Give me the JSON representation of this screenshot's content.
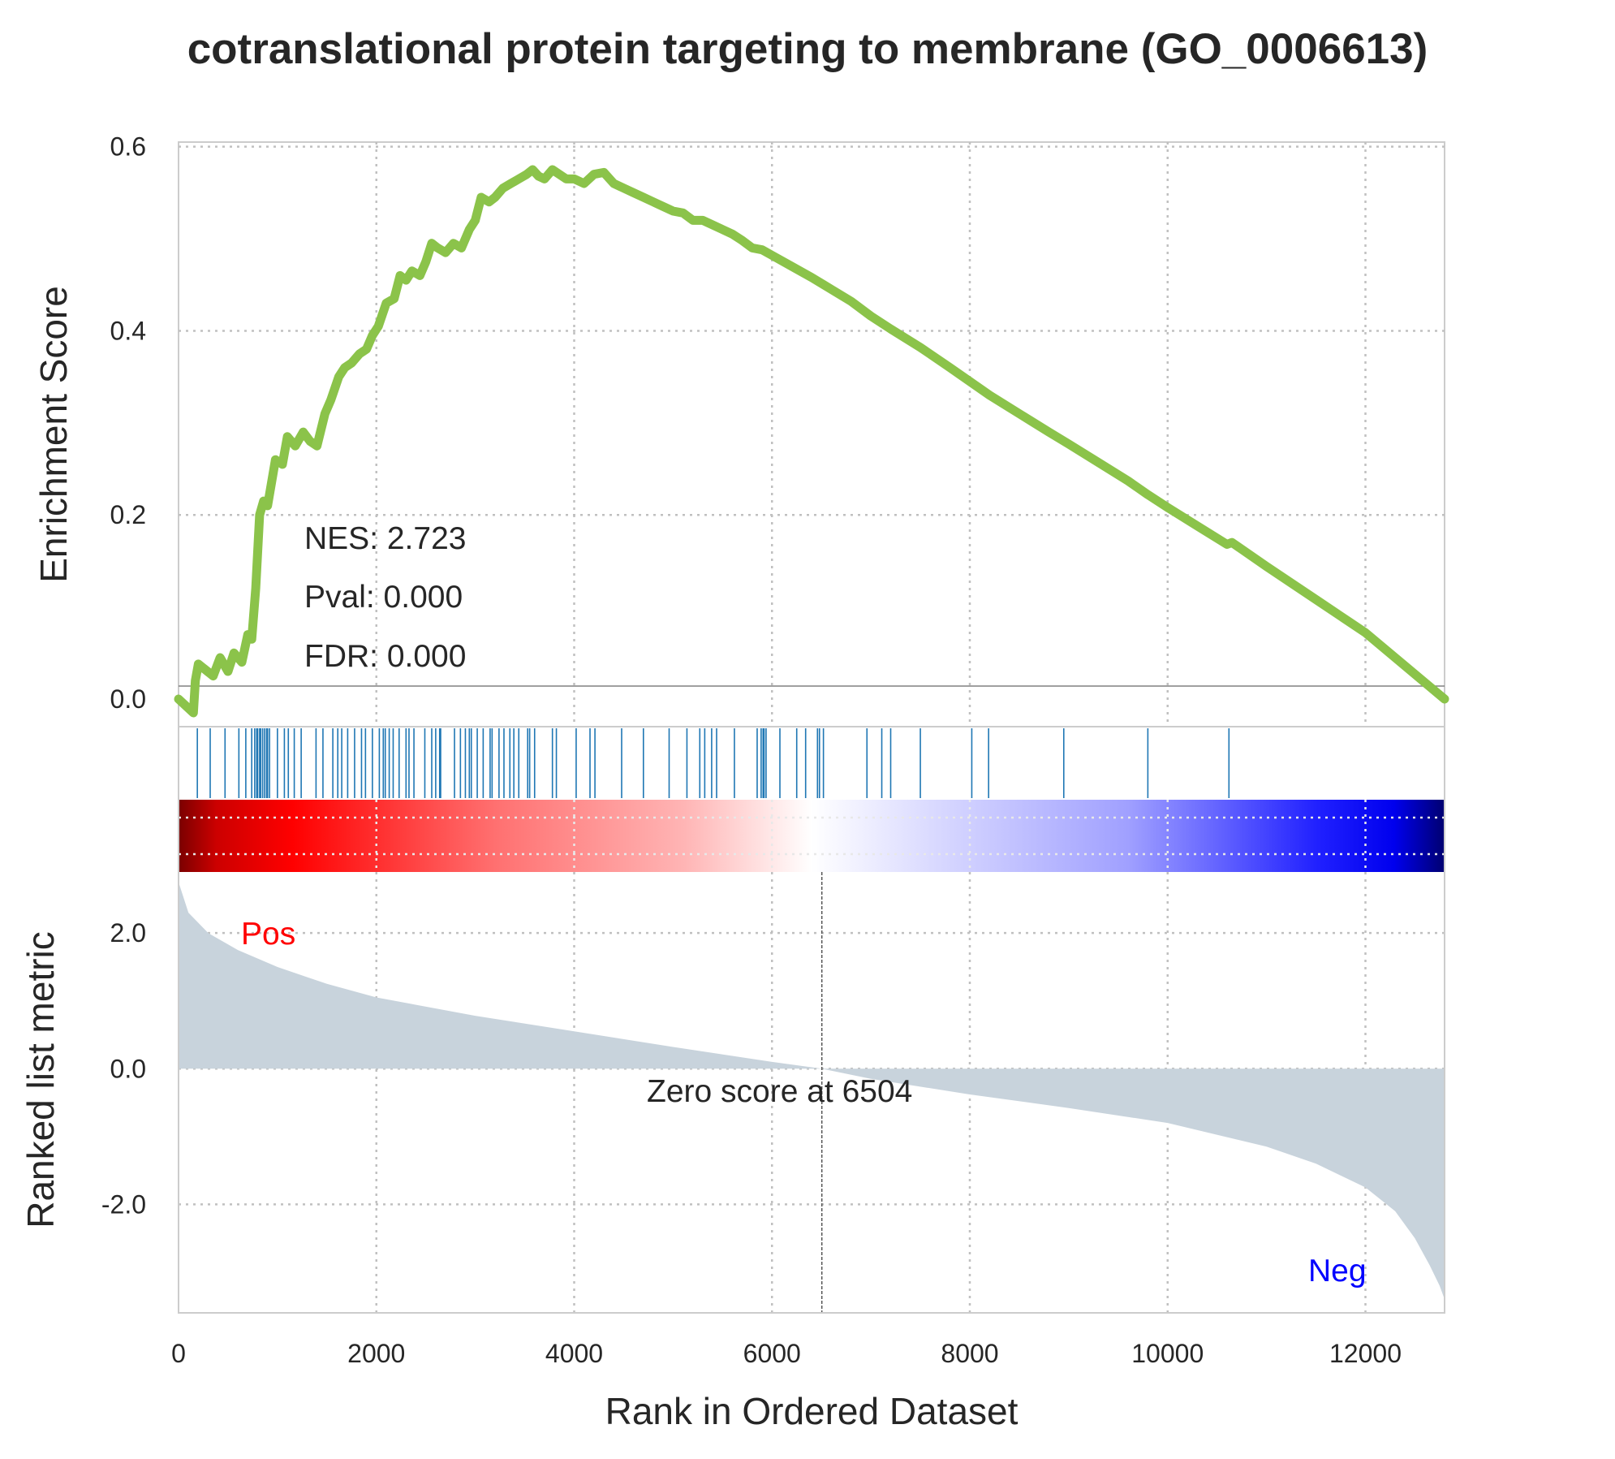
{
  "chart_data": {
    "type": "line",
    "title": "cotranslational protein targeting to membrane (GO_0006613)",
    "xlabel": "Rank in Ordered Dataset",
    "xlim": [
      0,
      12800
    ],
    "x_ticks": [
      "0",
      "2000",
      "4000",
      "6000",
      "8000",
      "10000",
      "12000"
    ],
    "colors": {
      "es_line": "#8bc34a",
      "hit_lines": "#1f77b4",
      "metric_fill": "#c8d3dc",
      "pos": "#ff0000",
      "neg": "#0000ff"
    },
    "enrichment": {
      "ylabel": "Enrichment Score",
      "ylim": [
        -0.03,
        0.605
      ],
      "y_ticks": [
        "0.0",
        "0.2",
        "0.4",
        "0.6"
      ],
      "grid": true,
      "stats": {
        "nes": "NES: 2.723",
        "pval": "Pval: 0.000",
        "fdr": "FDR: 0.000"
      },
      "series": [
        {
          "x": [
            0,
            150,
            170,
            200,
            350,
            420,
            500,
            560,
            640,
            700,
            740,
            780,
            820,
            860,
            900,
            980,
            1050,
            1100,
            1180,
            1260,
            1330,
            1400,
            1480,
            1540,
            1620,
            1680,
            1750,
            1830,
            1900,
            1960,
            2020,
            2100,
            2180,
            2240,
            2300,
            2360,
            2440,
            2500,
            2560,
            2620,
            2700,
            2780,
            2860,
            2940,
            3000,
            3060,
            3140,
            3200,
            3280,
            3360,
            3440,
            3520,
            3580,
            3640,
            3700,
            3780,
            3850,
            3920,
            4000,
            4100,
            4200,
            4300,
            4400,
            4500,
            4600,
            4700,
            4800,
            4900,
            5000,
            5100,
            5200,
            5300,
            5400,
            5500,
            5600,
            5700,
            5800,
            5900,
            6000,
            6200,
            6400,
            6600,
            6800,
            7000,
            7200,
            7500,
            7800,
            8000,
            8200,
            8500,
            8800,
            9000,
            9300,
            9600,
            9800,
            10000,
            10300,
            10600,
            10650,
            11000,
            11500,
            12000,
            12800
          ],
          "y": [
            0.0,
            -0.015,
            0.02,
            0.038,
            0.025,
            0.045,
            0.03,
            0.05,
            0.04,
            0.07,
            0.065,
            0.12,
            0.2,
            0.215,
            0.21,
            0.26,
            0.255,
            0.285,
            0.275,
            0.29,
            0.28,
            0.275,
            0.31,
            0.325,
            0.35,
            0.36,
            0.365,
            0.375,
            0.38,
            0.395,
            0.405,
            0.43,
            0.435,
            0.46,
            0.455,
            0.465,
            0.46,
            0.475,
            0.495,
            0.49,
            0.485,
            0.495,
            0.49,
            0.51,
            0.52,
            0.545,
            0.54,
            0.545,
            0.555,
            0.56,
            0.565,
            0.57,
            0.575,
            0.568,
            0.565,
            0.575,
            0.57,
            0.565,
            0.565,
            0.56,
            0.57,
            0.572,
            0.56,
            0.555,
            0.55,
            0.545,
            0.54,
            0.535,
            0.53,
            0.528,
            0.52,
            0.52,
            0.515,
            0.51,
            0.505,
            0.498,
            0.49,
            0.488,
            0.482,
            0.47,
            0.458,
            0.445,
            0.432,
            0.416,
            0.402,
            0.382,
            0.36,
            0.345,
            0.33,
            0.31,
            0.29,
            0.277,
            0.257,
            0.237,
            0.222,
            0.208,
            0.188,
            0.168,
            0.17,
            0.144,
            0.108,
            0.072,
            0.0
          ]
        }
      ]
    },
    "hits": [
      190,
      320,
      470,
      610,
      680,
      740,
      770,
      790,
      800,
      820,
      830,
      850,
      870,
      890,
      900,
      920,
      1000,
      1070,
      1110,
      1170,
      1240,
      1390,
      1460,
      1560,
      1610,
      1650,
      1710,
      1780,
      1850,
      1890,
      1960,
      2030,
      2070,
      2090,
      2130,
      2170,
      2230,
      2300,
      2330,
      2380,
      2490,
      2560,
      2600,
      2640,
      2650,
      2790,
      2850,
      2900,
      2940,
      2960,
      3020,
      3080,
      3150,
      3170,
      3240,
      3290,
      3350,
      3390,
      3440,
      3530,
      3550,
      3600,
      3780,
      3820,
      4020,
      4160,
      4210,
      4480,
      4700,
      4960,
      5140,
      5270,
      5320,
      5390,
      5440,
      5620,
      5850,
      5890,
      5910,
      5920,
      5940,
      6080,
      6250,
      6340,
      6460,
      6480,
      6520,
      6960,
      7110,
      7200,
      7500,
      8020,
      8190,
      8950,
      9800,
      10620
    ],
    "rank_metric": {
      "ylabel": "Ranked list metric",
      "ylim": [
        -3.6,
        2.9
      ],
      "y_ticks": [
        "2.0",
        "0.0",
        "-2.0"
      ],
      "zero_cross": 6504,
      "zero_label": "Zero score at 6504",
      "pos_label": "Pos",
      "neg_label": "Neg",
      "series": [
        {
          "x": [
            0,
            100,
            300,
            600,
            1000,
            1500,
            2000,
            3000,
            4000,
            5000,
            6000,
            6504,
            7000,
            8000,
            9000,
            10000,
            11000,
            11500,
            12000,
            12300,
            12500,
            12650,
            12750,
            12800
          ],
          "y": [
            2.75,
            2.3,
            2.0,
            1.75,
            1.5,
            1.25,
            1.05,
            0.78,
            0.55,
            0.32,
            0.1,
            0.0,
            -0.15,
            -0.38,
            -0.58,
            -0.8,
            -1.15,
            -1.4,
            -1.75,
            -2.1,
            -2.5,
            -2.9,
            -3.2,
            -3.4
          ]
        }
      ]
    }
  }
}
